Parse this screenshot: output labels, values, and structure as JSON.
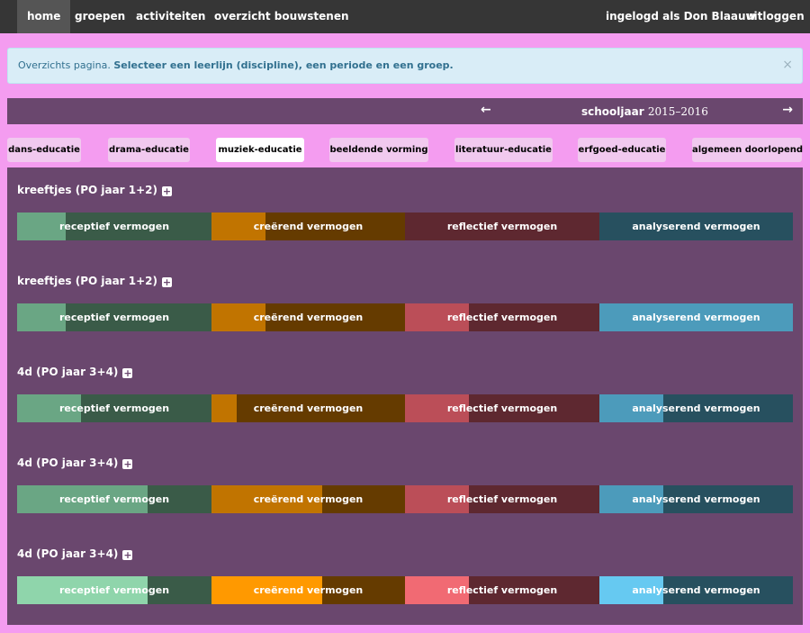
{
  "nav": {
    "home": "home",
    "groepen": "groepen",
    "activiteiten": "activiteiten",
    "overzicht": "overzicht bouwstenen",
    "user": "ingelogd als Don Blaauw",
    "logout": "uitloggen"
  },
  "alert": {
    "prefix": "Overzichts pagina.",
    "message": "Selecteer een leerlijn (discipline), een periode en een groep.",
    "close": "×"
  },
  "year": {
    "prev": "←",
    "next": "→",
    "label": "schooljaar",
    "value": "2015–2016"
  },
  "tabs": [
    "dans-educatie",
    "drama-educatie",
    "muziek-educatie",
    "beeldende vorming",
    "literatuur-educatie",
    "erfgoed-educatie",
    "algemeen doorlopend"
  ],
  "active_tab": "muziek-educatie",
  "colors": {
    "receptief": {
      "dark": "#3a5b48",
      "light": "#6aa684",
      "bright": "#8fd5ab"
    },
    "creerend": {
      "dark": "#653b00",
      "light": "#c17400",
      "bright": "#ff9900"
    },
    "reflectief": {
      "dark": "#5e2830",
      "light": "#bb4e58",
      "bright": "#f16a73"
    },
    "analyserend": {
      "dark": "#27505f",
      "light": "#4c9bbb",
      "bright": "#66c9f1"
    }
  },
  "groups": [
    {
      "title": "kreeftjes (PO jaar 1+2)",
      "bars": [
        {
          "label": "receptief vermogen",
          "tone": "light",
          "progress": 0.25
        },
        {
          "label": "creërend vermogen",
          "tone": "light",
          "progress": 0.28
        },
        {
          "label": "reflectief vermogen",
          "tone": "light",
          "progress": 0.0
        },
        {
          "label": "analyserend vermogen",
          "tone": "light",
          "progress": 0.0
        }
      ]
    },
    {
      "title": "kreeftjes (PO jaar 1+2)",
      "bars": [
        {
          "label": "receptief vermogen",
          "tone": "light",
          "progress": 0.25
        },
        {
          "label": "creërend vermogen",
          "tone": "light",
          "progress": 0.28
        },
        {
          "label": "reflectief vermogen",
          "tone": "light",
          "progress": 0.33
        },
        {
          "label": "analyserend vermogen",
          "tone": "light",
          "progress": 1.0
        }
      ]
    },
    {
      "title": "4d (PO jaar 3+4)",
      "bars": [
        {
          "label": "receptief vermogen",
          "tone": "light",
          "progress": 0.33
        },
        {
          "label": "creërend vermogen",
          "tone": "light",
          "progress": 0.13
        },
        {
          "label": "reflectief vermogen",
          "tone": "light",
          "progress": 0.33
        },
        {
          "label": "analyserend vermogen",
          "tone": "light",
          "progress": 0.33
        }
      ]
    },
    {
      "title": "4d (PO jaar 3+4)",
      "bars": [
        {
          "label": "receptief vermogen",
          "tone": "light",
          "progress": 0.67
        },
        {
          "label": "creërend vermogen",
          "tone": "light",
          "progress": 0.57
        },
        {
          "label": "reflectief vermogen",
          "tone": "light",
          "progress": 0.33
        },
        {
          "label": "analyserend vermogen",
          "tone": "light",
          "progress": 0.33
        }
      ]
    },
    {
      "title": "4d (PO jaar 3+4)",
      "bars": [
        {
          "label": "receptief vermogen",
          "tone": "bright",
          "progress": 0.67
        },
        {
          "label": "creërend vermogen",
          "tone": "bright",
          "progress": 0.57
        },
        {
          "label": "reflectief vermogen",
          "tone": "bright",
          "progress": 0.33
        },
        {
          "label": "analyserend vermogen",
          "tone": "bright",
          "progress": 0.33
        }
      ]
    }
  ]
}
